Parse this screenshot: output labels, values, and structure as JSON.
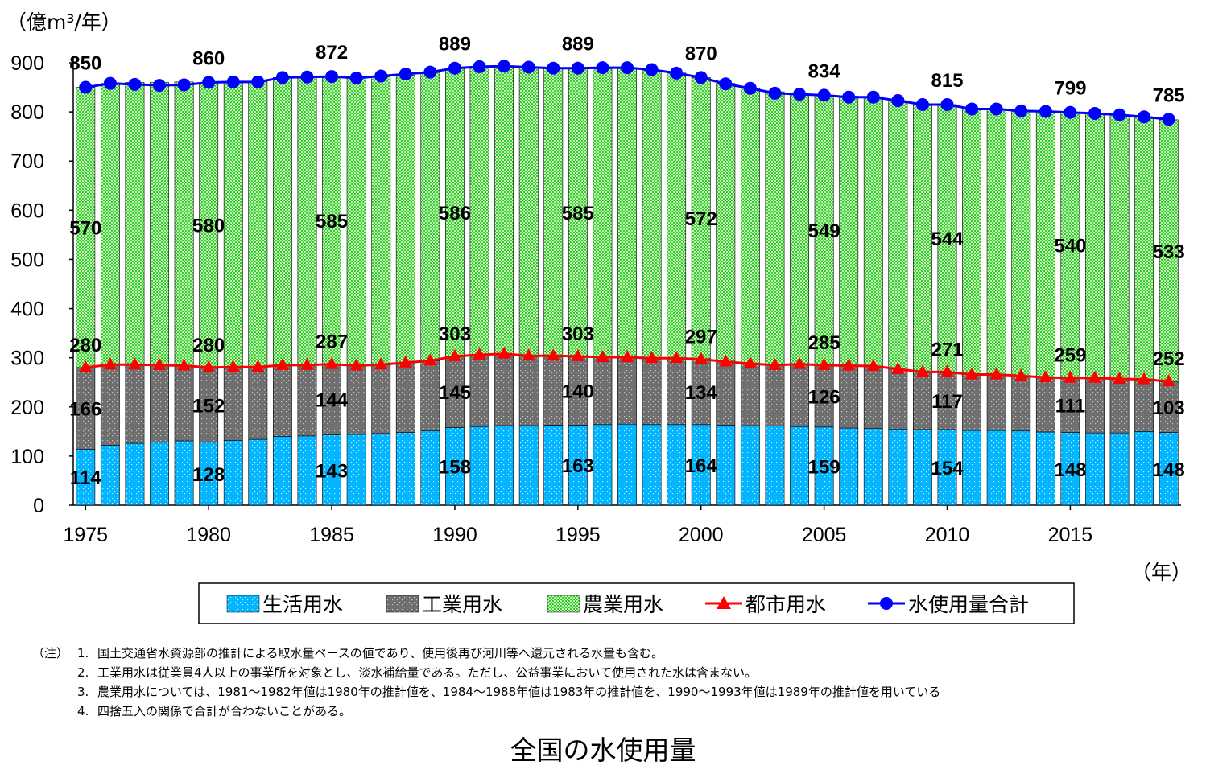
{
  "chart_data": {
    "type": "bar",
    "stacked": true,
    "ylabel": "（億m³/年）",
    "xlabel": "（年）",
    "ylim": [
      0,
      900
    ],
    "yticks": [
      0,
      100,
      200,
      300,
      400,
      500,
      600,
      700,
      800,
      900
    ],
    "xticks": [
      1975,
      1980,
      1985,
      1990,
      1995,
      2000,
      2005,
      2010,
      2015
    ],
    "years": [
      1975,
      1976,
      1977,
      1978,
      1979,
      1980,
      1981,
      1982,
      1983,
      1984,
      1985,
      1986,
      1987,
      1988,
      1989,
      1990,
      1991,
      1992,
      1993,
      1994,
      1995,
      1996,
      1997,
      1998,
      1999,
      2000,
      2001,
      2002,
      2003,
      2004,
      2005,
      2006,
      2007,
      2008,
      2009,
      2010,
      2011,
      2012,
      2013,
      2014,
      2015,
      2016,
      2017,
      2018,
      2019
    ],
    "series": [
      {
        "name": "生活用水",
        "kind": "bar",
        "color": "#00b4ff",
        "values": [
          114,
          122,
          126,
          128,
          131,
          128,
          132,
          134,
          140,
          141,
          143,
          144,
          146,
          148,
          151,
          158,
          160,
          162,
          162,
          163,
          163,
          164,
          165,
          164,
          164,
          164,
          163,
          162,
          161,
          160,
          159,
          157,
          156,
          155,
          154,
          154,
          152,
          152,
          151,
          149,
          148,
          147,
          147,
          150,
          148
        ]
      },
      {
        "name": "工業用水",
        "kind": "bar",
        "color": "#6e6e6e",
        "values": [
          166,
          164,
          160,
          157,
          153,
          152,
          149,
          147,
          145,
          144,
          144,
          140,
          140,
          142,
          143,
          145,
          146,
          146,
          142,
          141,
          140,
          137,
          136,
          135,
          135,
          134,
          130,
          126,
          125,
          127,
          126,
          127,
          127,
          122,
          117,
          117,
          114,
          114,
          112,
          111,
          111,
          112,
          110,
          106,
          103
        ]
      },
      {
        "name": "農業用水",
        "kind": "bar",
        "color": "#33cc33",
        "values": [
          570,
          572,
          574,
          575,
          577,
          580,
          580,
          580,
          585,
          585,
          585,
          585,
          585,
          585,
          586,
          586,
          586,
          586,
          586,
          585,
          585,
          587,
          589,
          585,
          580,
          572,
          565,
          560,
          555,
          550,
          549,
          548,
          548,
          546,
          545,
          544,
          540,
          540,
          538,
          540,
          540,
          538,
          537,
          533,
          533
        ]
      },
      {
        "name": "都市用水",
        "kind": "line",
        "color": "#ff0000",
        "values": [
          280,
          286,
          286,
          285,
          284,
          280,
          281,
          281,
          285,
          285,
          287,
          284,
          286,
          290,
          294,
          303,
          306,
          308,
          304,
          304,
          303,
          301,
          301,
          299,
          299,
          297,
          292,
          288,
          285,
          287,
          285,
          284,
          283,
          277,
          271,
          271,
          266,
          266,
          263,
          260,
          259,
          259,
          257,
          256,
          252
        ]
      },
      {
        "name": "水使用量合計",
        "kind": "line",
        "color": "#0000ff",
        "values": [
          850,
          858,
          856,
          854,
          855,
          860,
          861,
          861,
          870,
          871,
          872,
          869,
          873,
          877,
          881,
          889,
          892,
          893,
          891,
          889,
          889,
          890,
          890,
          886,
          879,
          870,
          857,
          848,
          838,
          836,
          834,
          830,
          830,
          823,
          815,
          815,
          806,
          806,
          802,
          801,
          799,
          797,
          794,
          790,
          785
        ]
      }
    ],
    "data_labels": {
      "生活用水": [
        [
          1975,
          114
        ],
        [
          1980,
          128
        ],
        [
          1985,
          143
        ],
        [
          1990,
          158
        ],
        [
          1995,
          163
        ],
        [
          2000,
          164
        ],
        [
          2005,
          159
        ],
        [
          2010,
          154
        ],
        [
          2015,
          148
        ],
        [
          2019,
          148
        ]
      ],
      "工業用水": [
        [
          1975,
          166
        ],
        [
          1980,
          152
        ],
        [
          1985,
          144
        ],
        [
          1990,
          145
        ],
        [
          1995,
          140
        ],
        [
          2000,
          134
        ],
        [
          2005,
          126
        ],
        [
          2010,
          117
        ],
        [
          2015,
          111
        ],
        [
          2019,
          103
        ]
      ],
      "農業用水": [
        [
          1975,
          570
        ],
        [
          1980,
          580
        ],
        [
          1985,
          585
        ],
        [
          1990,
          586
        ],
        [
          1995,
          585
        ],
        [
          2000,
          572
        ],
        [
          2005,
          549
        ],
        [
          2010,
          544
        ],
        [
          2015,
          540
        ],
        [
          2019,
          533
        ]
      ],
      "都市用水": [
        [
          1975,
          280
        ],
        [
          1980,
          280
        ],
        [
          1985,
          287
        ],
        [
          1990,
          303
        ],
        [
          1995,
          303
        ],
        [
          2000,
          297
        ],
        [
          2005,
          285
        ],
        [
          2010,
          271
        ],
        [
          2015,
          259
        ],
        [
          2019,
          252
        ]
      ],
      "水使用量合計": [
        [
          1975,
          850
        ],
        [
          1980,
          860
        ],
        [
          1985,
          872
        ],
        [
          1990,
          889
        ],
        [
          1995,
          889
        ],
        [
          2000,
          870
        ],
        [
          2005,
          834
        ],
        [
          2010,
          815
        ],
        [
          2015,
          799
        ],
        [
          2019,
          785
        ]
      ]
    },
    "legend": {
      "placement": "bottom-center",
      "items": [
        "生活用水",
        "工業用水",
        "農業用水",
        "都市用水",
        "水使用量合計"
      ]
    },
    "grid": false
  },
  "notes": {
    "prefix": "（注）",
    "items": [
      {
        "num": "1.",
        "text": "国土交通省水資源部の推計による取水量ベースの値であり、使用後再び河川等へ還元される水量も含む。"
      },
      {
        "num": "2.",
        "text": "工業用水は従業員4人以上の事業所を対象とし、淡水補給量である。ただし、公益事業において使用された水は含まない。"
      },
      {
        "num": "3.",
        "text": "農業用水については、1981～1982年値は1980年の推計値を、1984～1988年値は1983年の推計値を、1990～1993年値は1989年の推計値を用いている"
      },
      {
        "num": "4.",
        "text": "四捨五入の関係で合計が合わないことがある。"
      }
    ]
  },
  "caption": "全国の水使用量"
}
